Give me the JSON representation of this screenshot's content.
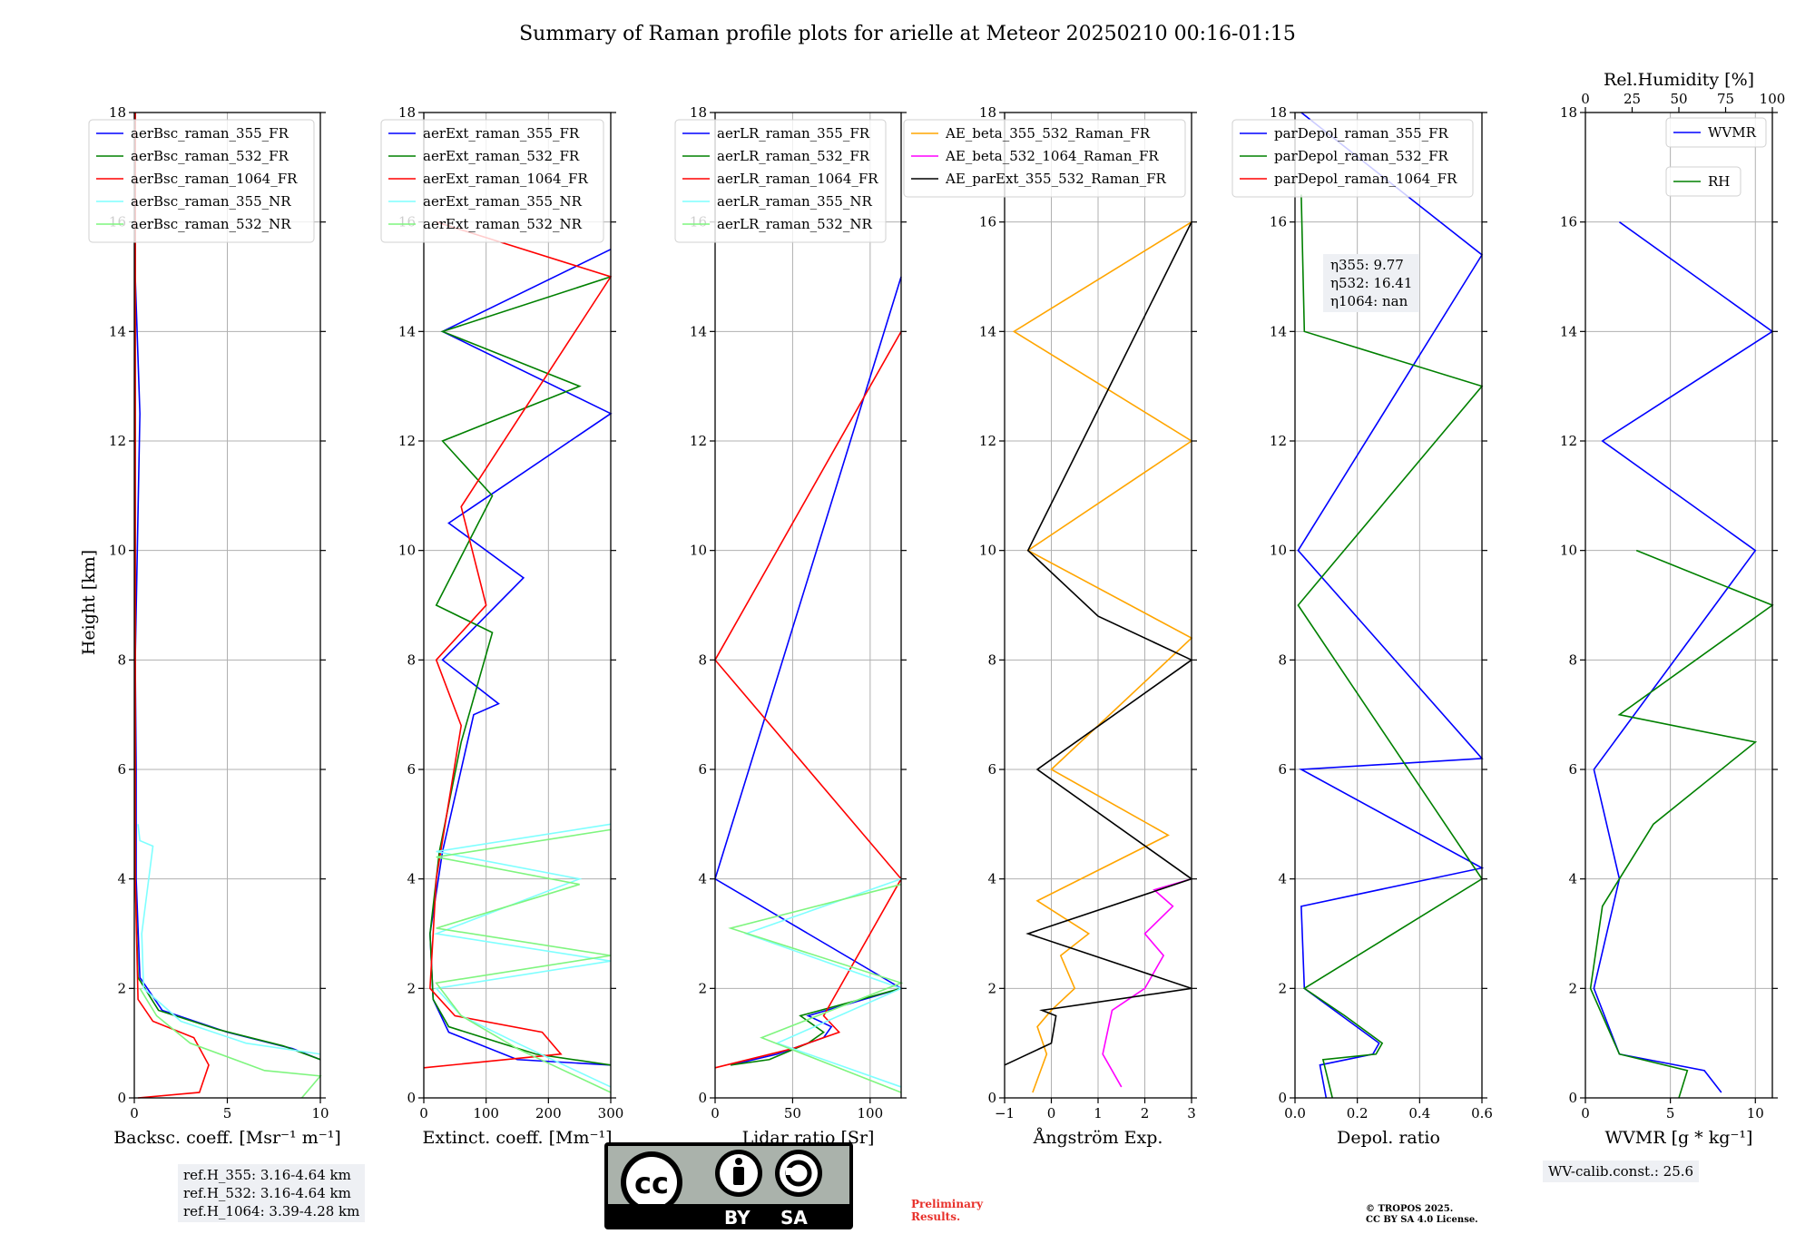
{
  "title": "Summary of Raman profile plots for arielle at Meteor 20250210 00:16-01:15",
  "y_label": "Height [km]",
  "panels": [
    {
      "id": "bsc",
      "xlabel": "Backsc. coeff. [Msr⁻¹ m⁻¹]",
      "xticks": [
        "0",
        "5",
        "10"
      ],
      "legend": [
        "aerBsc_raman_355_FR",
        "aerBsc_raman_532_FR",
        "aerBsc_raman_1064_FR",
        "aerBsc_raman_355_NR",
        "aerBsc_raman_532_NR"
      ]
    },
    {
      "id": "ext",
      "xlabel": "Extinct. coeff. [Mm⁻¹]",
      "xticks": [
        "0",
        "100",
        "200",
        "300"
      ],
      "legend": [
        "aerExt_raman_355_FR",
        "aerExt_raman_532_FR",
        "aerExt_raman_1064_FR",
        "aerExt_raman_355_NR",
        "aerExt_raman_532_NR"
      ]
    },
    {
      "id": "lr",
      "xlabel": "Lidar ratio [Sr]",
      "xticks": [
        "0",
        "50",
        "100"
      ],
      "legend": [
        "aerLR_raman_355_FR",
        "aerLR_raman_532_FR",
        "aerLR_raman_1064_FR",
        "aerLR_raman_355_NR",
        "aerLR_raman_532_NR"
      ]
    },
    {
      "id": "ae",
      "xlabel": "Ångström Exp.",
      "xticks": [
        "−1",
        "0",
        "1",
        "2",
        "3"
      ],
      "legend": [
        "AE_beta_355_532_Raman_FR",
        "AE_beta_532_1064_Raman_FR",
        "AE_parExt_355_532_Raman_FR"
      ]
    },
    {
      "id": "depol",
      "xlabel": "Depol. ratio",
      "xticks": [
        "0.0",
        "0.2",
        "0.4",
        "0.6"
      ],
      "legend": [
        "parDepol_raman_355_FR",
        "parDepol_raman_532_FR",
        "parDepol_raman_1064_FR"
      ]
    },
    {
      "id": "wv",
      "xlabel": "WVMR [g * kg⁻¹]",
      "xticks": [
        "0",
        "5",
        "10"
      ],
      "legend": [
        "WVMR",
        "RH"
      ],
      "top_label": "Rel.Humidity [%]",
      "top_ticks": [
        "0",
        "25",
        "50",
        "75",
        "100"
      ]
    }
  ],
  "y_ticks": [
    "0",
    "2",
    "4",
    "6",
    "8",
    "10",
    "12",
    "14",
    "16",
    "18"
  ],
  "eta_box": [
    "η355: 9.77",
    "η532: 16.41",
    "η1064: nan"
  ],
  "ref_box": [
    "ref.H_355: 3.16-4.64 km",
    "ref.H_532: 3.16-4.64 km",
    "ref.H_1064: 3.39-4.28 km"
  ],
  "wv_calib": "WV-calib.const.: 25.6",
  "preliminary": [
    "Preliminary",
    "Results."
  ],
  "copyright": [
    "© TROPOS 2025.",
    "CC BY SA 4.0 License."
  ],
  "license_labels": [
    "BY",
    "SA"
  ],
  "colors": {
    "c355": "#0000ff",
    "c532": "#008000",
    "c1064": "#ff0000",
    "cNR355": "#7fffff",
    "cNR532": "#7ff57f",
    "orange": "#ffa500",
    "magenta": "#ff00ff",
    "black": "#000000",
    "grid": "#b0b0b0"
  },
  "chart_data": {
    "type": "line",
    "title": "Summary of Raman profile plots for arielle at Meteor 20250210 00:16-01:15",
    "ylabel": "Height [km]",
    "ylim": [
      0,
      18
    ],
    "grid": true,
    "subplots": [
      {
        "xlabel": "Backsc. coeff. [Msr⁻¹ m⁻¹]",
        "xlim": [
          0,
          10
        ],
        "series": [
          {
            "name": "aerBsc_raman_355_FR",
            "x": [
              10.2,
              8.5,
              5.0,
              1.5,
              0.3,
              0.1,
              0.1,
              0.05,
              0.3,
              0.05,
              0.05
            ],
            "y": [
              0.7,
              0.9,
              1.2,
              1.6,
              2.2,
              4.0,
              6.0,
              8.0,
              12.5,
              15.0,
              18.0
            ]
          },
          {
            "name": "aerBsc_raman_532_FR",
            "x": [
              10.2,
              8.0,
              4.5,
              1.3,
              0.2,
              0.05,
              0.05,
              0.05
            ],
            "y": [
              0.7,
              0.95,
              1.25,
              1.6,
              2.2,
              4.0,
              8.0,
              18.0
            ]
          },
          {
            "name": "aerBsc_raman_1064_FR",
            "x": [
              0.2,
              3.5,
              4.0,
              3.2,
              1.0,
              0.2,
              0.05,
              0.05
            ],
            "y": [
              0.0,
              0.1,
              0.6,
              1.1,
              1.4,
              1.8,
              4.0,
              18.0
            ]
          },
          {
            "name": "aerBsc_raman_355_NR",
            "x": [
              10.0,
              6.0,
              2.5,
              0.5,
              0.4,
              1.0,
              0.3,
              0.2
            ],
            "y": [
              0.8,
              1.0,
              1.4,
              2.0,
              3.0,
              4.6,
              4.7,
              5.0
            ]
          },
          {
            "name": "aerBsc_raman_532_NR",
            "x": [
              9.0,
              10.0,
              7.0,
              3.0,
              1.2,
              0.3
            ],
            "y": [
              0.0,
              0.4,
              0.5,
              1.0,
              1.5,
              2.0
            ]
          }
        ]
      },
      {
        "xlabel": "Extinct. coeff. [Mm⁻¹]",
        "xlim": [
          0,
          300
        ],
        "series": [
          {
            "name": "aerExt_raman_355_FR",
            "x": [
              300,
              150,
              40,
              15,
              10,
              30,
              80,
              120,
              30,
              160,
              40,
              300,
              30,
              300
            ],
            "y": [
              0.6,
              0.7,
              1.2,
              1.8,
              3.0,
              4.5,
              7.0,
              7.2,
              8.0,
              9.5,
              10.5,
              12.5,
              14.0,
              15.5
            ]
          },
          {
            "name": "aerExt_raman_532_FR",
            "x": [
              300,
              180,
              40,
              15,
              10,
              25,
              60,
              110,
              20,
              110,
              30,
              250,
              30,
              300
            ],
            "y": [
              0.6,
              0.8,
              1.3,
              1.8,
              3.0,
              4.5,
              6.5,
              8.5,
              9.0,
              11.0,
              12.0,
              13.0,
              14.0,
              15.0
            ]
          },
          {
            "name": "aerExt_raman_1064_FR",
            "x": [
              0,
              220,
              190,
              50,
              10,
              20,
              60,
              20,
              100,
              60,
              300,
              20
            ],
            "y": [
              0.55,
              0.8,
              1.2,
              1.5,
              2.0,
              4.0,
              6.8,
              8.0,
              9.0,
              10.8,
              15.0,
              16.0
            ]
          },
          {
            "name": "aerExt_raman_355_NR",
            "x": [
              300,
              150,
              60,
              20,
              300,
              20,
              250,
              20,
              300
            ],
            "y": [
              0.2,
              1.0,
              1.5,
              2.0,
              2.5,
              3.0,
              4.0,
              4.5,
              5.0
            ]
          },
          {
            "name": "aerExt_raman_532_NR",
            "x": [
              300,
              150,
              60,
              20,
              300,
              20,
              250,
              20,
              300
            ],
            "y": [
              0.1,
              0.9,
              1.5,
              2.1,
              2.6,
              3.1,
              3.9,
              4.4,
              4.9
            ]
          }
        ]
      },
      {
        "xlabel": "Lidar ratio [Sr]",
        "xlim": [
          0,
          120
        ],
        "series": [
          {
            "name": "aerLR_raman_355_FR",
            "x": [
              10,
              40,
              70,
              75,
              60,
              120,
              0,
              120
            ],
            "y": [
              0.6,
              0.8,
              1.1,
              1.3,
              1.5,
              2.0,
              4.0,
              15.0
            ]
          },
          {
            "name": "aerLR_raman_532_FR",
            "x": [
              10,
              35,
              60,
              70,
              55,
              120
            ],
            "y": [
              0.6,
              0.7,
              1.0,
              1.2,
              1.5,
              2.0
            ]
          },
          {
            "name": "aerLR_raman_1064_FR",
            "x": [
              0,
              50,
              80,
              70,
              120,
              0,
              120
            ],
            "y": [
              0.55,
              0.9,
              1.2,
              1.5,
              4.0,
              8.0,
              14.0
            ]
          },
          {
            "name": "aerLR_raman_355_NR",
            "x": [
              120,
              40,
              120,
              20,
              120
            ],
            "y": [
              0.2,
              1.0,
              2.0,
              3.0,
              4.0
            ]
          },
          {
            "name": "aerLR_raman_532_NR",
            "x": [
              120,
              30,
              120,
              10,
              120
            ],
            "y": [
              0.1,
              1.1,
              2.1,
              3.1,
              3.9
            ]
          }
        ]
      },
      {
        "xlabel": "Ångström Exp.",
        "xlim": [
          -1,
          3
        ],
        "series": [
          {
            "name": "AE_beta_355_532_Raman_FR",
            "x": [
              -0.4,
              -0.1,
              -0.3,
              0.0,
              0.5,
              0.2,
              0.8,
              -0.3,
              2.5,
              0.0,
              3.0,
              -0.5,
              3.0,
              -0.8,
              3.0
            ],
            "y": [
              0.1,
              0.8,
              1.3,
              1.6,
              2.0,
              2.6,
              3.0,
              3.6,
              4.8,
              6.0,
              8.4,
              10.0,
              12.0,
              14.0,
              16.0
            ]
          },
          {
            "name": "AE_beta_532_1064_Raman_FR",
            "x": [
              1.5,
              1.1,
              1.3,
              2.0,
              2.4,
              2.0,
              2.6,
              2.2,
              3.0
            ],
            "y": [
              0.2,
              0.8,
              1.6,
              2.0,
              2.6,
              3.0,
              3.5,
              3.8,
              4.0
            ]
          },
          {
            "name": "AE_parExt_355_532_Raman_FR",
            "x": [
              -1.0,
              0.0,
              0.1,
              -0.2,
              3.0,
              -0.5,
              3.0,
              -0.3,
              3.0,
              1.0,
              -0.5,
              3.0
            ],
            "y": [
              0.6,
              1.0,
              1.5,
              1.6,
              2.0,
              3.0,
              4.0,
              6.0,
              8.0,
              8.8,
              10.0,
              16.0
            ]
          }
        ]
      },
      {
        "xlabel": "Depol. ratio",
        "xlim": [
          0,
          0.6
        ],
        "series": [
          {
            "name": "parDepol_raman_355_FR",
            "x": [
              0.1,
              0.08,
              0.25,
              0.27,
              0.15,
              0.03,
              0.02,
              0.6,
              0.02,
              0.6,
              0.01,
              0.6,
              0.02
            ],
            "y": [
              0.0,
              0.6,
              0.8,
              1.0,
              1.5,
              2.0,
              3.5,
              4.2,
              6.0,
              6.2,
              10.0,
              15.4,
              18.0
            ]
          },
          {
            "name": "parDepol_raman_532_FR",
            "x": [
              0.12,
              0.09,
              0.26,
              0.28,
              0.16,
              0.03,
              0.6,
              0.01,
              0.6,
              0.03,
              0.02
            ],
            "y": [
              0.0,
              0.7,
              0.8,
              1.0,
              1.5,
              2.0,
              4.0,
              9.0,
              13.0,
              14.0,
              16.5
            ]
          },
          {
            "name": "parDepol_raman_1064_FR",
            "x": [],
            "y": []
          }
        ]
      },
      {
        "xlabel": "WVMR [g * kg⁻¹]",
        "xlim": [
          0,
          11
        ],
        "top_axis": {
          "label": "Rel.Humidity [%]",
          "lim": [
            0,
            100
          ]
        },
        "series": [
          {
            "name": "WVMR",
            "x": [
              8.0,
              7.0,
              2.0,
              1.5,
              0.5,
              2.0,
              0.5,
              10.0,
              1.0,
              11.0,
              2.0
            ],
            "y": [
              0.1,
              0.5,
              0.8,
              1.2,
              2.0,
              4.0,
              6.0,
              10.0,
              12.0,
              14.0,
              16.0
            ]
          },
          {
            "name": "RH",
            "x": [
              5.5,
              6.0,
              2.0,
              0.3,
              1.0,
              4.0,
              10.0,
              2.0,
              11.0,
              3.0
            ],
            "y": [
              0.0,
              0.5,
              0.8,
              2.0,
              3.5,
              5.0,
              6.5,
              7.0,
              9.0,
              10.0
            ]
          }
        ]
      }
    ]
  }
}
